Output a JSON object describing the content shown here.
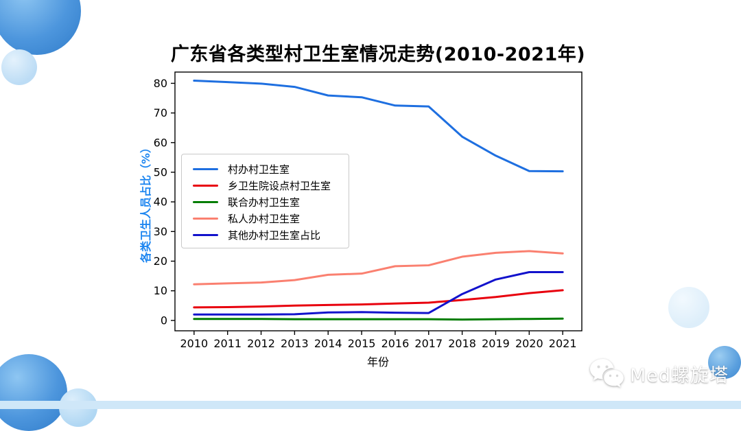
{
  "page": {
    "watermark_text": "Med螺旋塔",
    "accents": {
      "decor_blue": "#4d96dd",
      "decor_light_blue": "#cfe7f8",
      "ylabel_blue": "#1e86f0"
    }
  },
  "chart_data": {
    "type": "line",
    "title": "广东省各类型村卫生室情况走势(2010-2021年)",
    "xlabel": "年份",
    "ylabel": "各类卫生人员占比（%）",
    "x": [
      2010,
      2011,
      2012,
      2013,
      2014,
      2015,
      2016,
      2017,
      2018,
      2019,
      2020,
      2021
    ],
    "xticks": [
      2010,
      2011,
      2012,
      2013,
      2014,
      2015,
      2016,
      2017,
      2018,
      2019,
      2020,
      2021
    ],
    "yticks": [
      0,
      10,
      20,
      30,
      40,
      50,
      60,
      70,
      80
    ],
    "xlim": [
      2009.43,
      2021.57
    ],
    "ylim": [
      -3.5,
      83.8
    ],
    "grid": false,
    "legend_position": "center-left",
    "series": [
      {
        "name": "村办村卫生室",
        "color": "#1e6fe0",
        "values": [
          80.9,
          80.4,
          79.9,
          78.8,
          75.9,
          75.3,
          72.5,
          72.2,
          62.0,
          55.6,
          50.4,
          50.3
        ]
      },
      {
        "name": "乡卫生院设点村卫生室",
        "color": "#e8000d",
        "values": [
          4.4,
          4.5,
          4.7,
          5.0,
          5.2,
          5.4,
          5.7,
          6.0,
          6.9,
          7.9,
          9.2,
          10.2
        ]
      },
      {
        "name": "联合办村卫生室",
        "color": "#007d00",
        "values": [
          0.5,
          0.5,
          0.5,
          0.4,
          0.4,
          0.4,
          0.4,
          0.4,
          0.3,
          0.4,
          0.5,
          0.6
        ]
      },
      {
        "name": "私人办村卫生室",
        "color": "#fa8070",
        "values": [
          12.2,
          12.5,
          12.8,
          13.6,
          15.4,
          15.8,
          18.3,
          18.6,
          21.5,
          22.8,
          23.4,
          22.6
        ]
      },
      {
        "name": "其他办村卫生室占比",
        "color": "#1212cc",
        "values": [
          2.0,
          2.0,
          2.0,
          2.1,
          2.7,
          2.8,
          2.6,
          2.5,
          8.9,
          13.8,
          16.3,
          16.3
        ]
      }
    ]
  }
}
